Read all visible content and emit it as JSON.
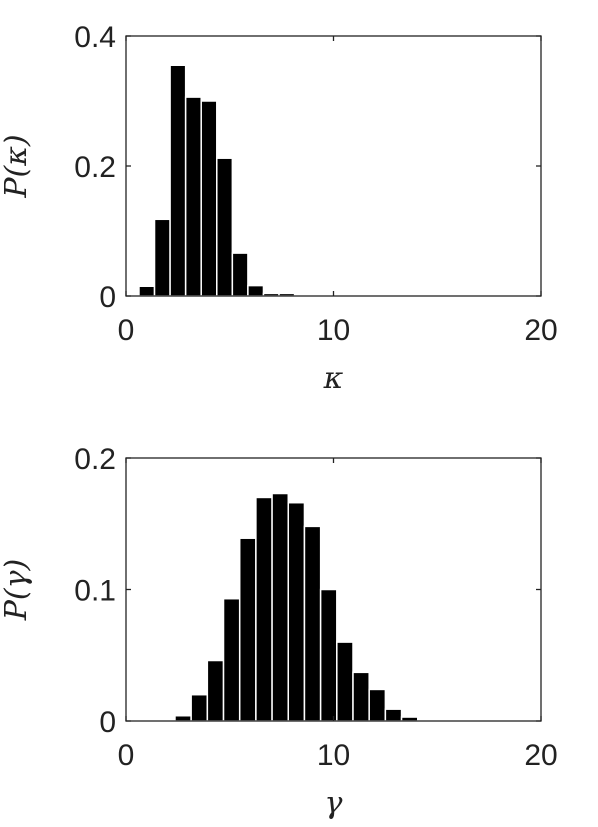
{
  "chart_data": [
    {
      "type": "bar",
      "xlabel": "κ",
      "ylabel": "P(κ)",
      "xlim": [
        0,
        20
      ],
      "ylim": [
        0,
        0.4
      ],
      "xticks": [
        0,
        10,
        20
      ],
      "yticks": [
        0,
        0.2,
        0.4
      ],
      "xtick_labels": [
        "0",
        "10",
        "20"
      ],
      "ytick_labels": [
        "0",
        "0.2",
        "0.4"
      ],
      "grid": false,
      "bin_width": 0.75,
      "x": [
        1.0,
        1.75,
        2.5,
        3.25,
        4.0,
        4.75,
        5.5,
        6.25,
        7.0,
        7.75
      ],
      "values": [
        0.015,
        0.118,
        0.355,
        0.306,
        0.3,
        0.212,
        0.066,
        0.016,
        0.004,
        0.004
      ]
    },
    {
      "type": "bar",
      "xlabel": "γ",
      "ylabel": "P(γ)",
      "xlim": [
        0,
        20
      ],
      "ylim": [
        0,
        0.2
      ],
      "xticks": [
        0,
        10,
        20
      ],
      "yticks": [
        0,
        0.1,
        0.2
      ],
      "xtick_labels": [
        "0",
        "10",
        "20"
      ],
      "ytick_labels": [
        "0",
        "0.1",
        "0.2"
      ],
      "grid": false,
      "bin_width": 0.78,
      "x": [
        2.75,
        3.53,
        4.31,
        5.09,
        5.87,
        6.65,
        7.43,
        8.21,
        8.99,
        9.77,
        10.55,
        11.33,
        12.11,
        12.89,
        13.67,
        14.45,
        15.23
      ],
      "values": [
        0.004,
        0.02,
        0.046,
        0.093,
        0.139,
        0.17,
        0.173,
        0.166,
        0.148,
        0.1,
        0.06,
        0.037,
        0.024,
        0.009,
        0.003,
        0.001,
        0.0005
      ]
    }
  ]
}
